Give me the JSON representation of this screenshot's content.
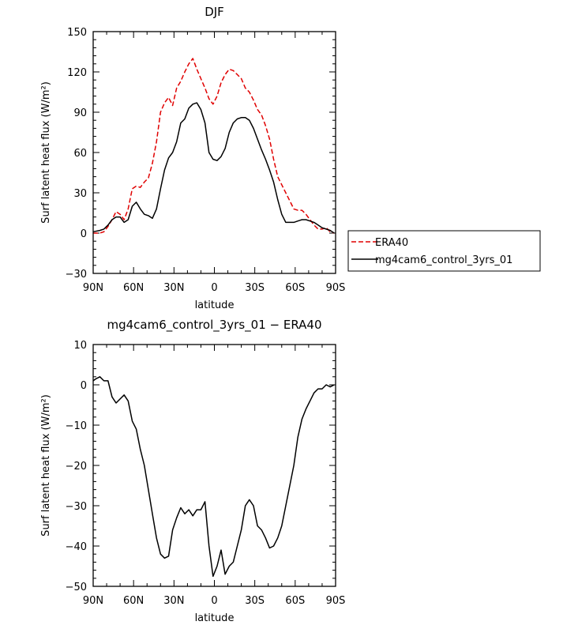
{
  "chart_data": [
    {
      "type": "line",
      "title": "DJF",
      "xlabel": "latitude",
      "ylabel": "Surf latent heat flux (W/m²)",
      "xlim": [
        -90,
        90
      ],
      "ylim": [
        -30,
        150
      ],
      "xticks": [
        -90,
        -60,
        -30,
        0,
        30,
        60,
        90
      ],
      "xticklabels": [
        "90N",
        "60N",
        "30N",
        "0",
        "30S",
        "60S",
        "90S"
      ],
      "yticks": [
        -30,
        0,
        30,
        60,
        90,
        120,
        150
      ],
      "yticklabels": [
        "−30",
        "0",
        "30",
        "60",
        "90",
        "120",
        "150"
      ],
      "legend": "right",
      "series": [
        {
          "name": "ERA40",
          "color": "#e00000",
          "dash": "dashed",
          "x": [
            -90,
            -85,
            -82,
            -79,
            -76,
            -73,
            -70,
            -67,
            -64,
            -61,
            -58,
            -55,
            -52,
            -49,
            -46,
            -43,
            -40,
            -37,
            -34,
            -31,
            -28,
            -25,
            -22,
            -19,
            -16,
            -13,
            -10,
            -7,
            -4,
            -1,
            2,
            5,
            8,
            11,
            14,
            17,
            20,
            23,
            26,
            29,
            32,
            35,
            38,
            41,
            44,
            47,
            50,
            53,
            56,
            59,
            62,
            65,
            68,
            71,
            74,
            77,
            80,
            83,
            86,
            89
          ],
          "values": [
            0,
            0,
            1,
            5,
            10,
            16,
            14,
            10,
            18,
            33,
            35,
            34,
            38,
            41,
            52,
            68,
            90,
            97,
            101,
            95,
            108,
            113,
            120,
            126,
            130,
            122,
            115,
            108,
            100,
            96,
            102,
            112,
            118,
            122,
            121,
            118,
            115,
            108,
            105,
            99,
            92,
            88,
            80,
            70,
            55,
            42,
            36,
            30,
            24,
            18,
            17,
            17,
            14,
            10,
            6,
            3,
            3,
            4,
            1,
            0
          ]
        },
        {
          "name": "mg4cam6_control_3yrs_01",
          "color": "#000000",
          "dash": "solid",
          "x": [
            -90,
            -85,
            -82,
            -79,
            -76,
            -73,
            -70,
            -67,
            -64,
            -61,
            -58,
            -55,
            -52,
            -49,
            -46,
            -43,
            -40,
            -37,
            -34,
            -31,
            -28,
            -25,
            -22,
            -19,
            -16,
            -13,
            -10,
            -7,
            -4,
            -1,
            2,
            5,
            8,
            11,
            14,
            17,
            20,
            23,
            26,
            29,
            32,
            35,
            38,
            41,
            44,
            47,
            50,
            53,
            56,
            59,
            62,
            65,
            68,
            71,
            74,
            77,
            80,
            83,
            86,
            89
          ],
          "values": [
            1,
            2,
            3,
            6,
            10,
            12,
            12,
            8,
            10,
            20,
            23,
            18,
            14,
            13,
            11,
            18,
            33,
            47,
            56,
            60,
            68,
            82,
            85,
            93,
            96,
            97,
            92,
            82,
            60,
            55,
            54,
            57,
            63,
            75,
            82,
            85,
            86,
            86,
            84,
            78,
            70,
            62,
            55,
            47,
            38,
            25,
            14,
            8,
            8,
            8,
            9,
            10,
            10,
            9,
            8,
            6,
            4,
            3,
            2,
            0
          ]
        }
      ]
    },
    {
      "type": "line",
      "title": "mg4cam6_control_3yrs_01 − ERA40",
      "xlabel": "latitude",
      "ylabel": "Surf latent heat flux (W/m²)",
      "xlim": [
        -90,
        90
      ],
      "ylim": [
        -50,
        10
      ],
      "xticks": [
        -90,
        -60,
        -30,
        0,
        30,
        60,
        90
      ],
      "xticklabels": [
        "90N",
        "60N",
        "30N",
        "0",
        "30S",
        "60S",
        "90S"
      ],
      "yticks": [
        -50,
        -40,
        -30,
        -20,
        -10,
        0,
        10
      ],
      "yticklabels": [
        "−50",
        "−40",
        "−30",
        "−20",
        "−10",
        "0",
        "10"
      ],
      "series": [
        {
          "color": "#000000",
          "dash": "solid",
          "x": [
            -90,
            -88,
            -85,
            -82,
            -79,
            -76,
            -73,
            -70,
            -67,
            -64,
            -61,
            -58,
            -55,
            -52,
            -49,
            -46,
            -43,
            -40,
            -37,
            -34,
            -31,
            -28,
            -25,
            -22,
            -19,
            -16,
            -13,
            -10,
            -7,
            -4,
            -1,
            2,
            5,
            8,
            11,
            14,
            17,
            20,
            23,
            26,
            29,
            32,
            35,
            38,
            41,
            44,
            47,
            50,
            53,
            56,
            59,
            62,
            65,
            68,
            71,
            74,
            77,
            80,
            83,
            86,
            89
          ],
          "values": [
            1,
            1.5,
            2,
            1,
            1,
            -3,
            -4.5,
            -3.5,
            -2.5,
            -4,
            -9,
            -11,
            -16,
            -20,
            -26,
            -32,
            -38,
            -42,
            -43,
            -42.5,
            -36,
            -33,
            -30.5,
            -32,
            -31,
            -32.5,
            -31,
            -31,
            -29,
            -40,
            -47.5,
            -45,
            -41,
            -47,
            -45,
            -44,
            -40,
            -36,
            -30,
            -28.5,
            -30,
            -35,
            -36,
            -38,
            -40.5,
            -40,
            -38,
            -35,
            -30,
            -25,
            -20,
            -13,
            -8.5,
            -6,
            -4,
            -2,
            -1,
            -1,
            0,
            -0.5,
            0
          ]
        }
      ]
    }
  ]
}
